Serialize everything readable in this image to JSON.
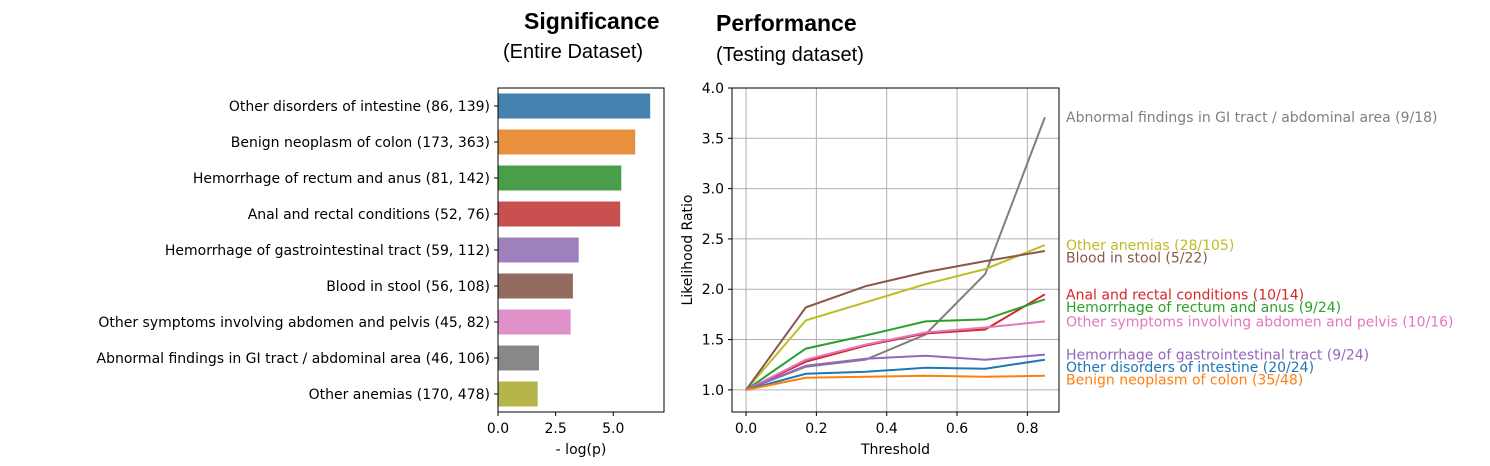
{
  "headings": {
    "left_title": "Significance",
    "left_subtitle": "(Entire Dataset)",
    "right_title": "Performance",
    "right_subtitle": "(Testing dataset)"
  },
  "chart_data": [
    {
      "type": "bar",
      "orientation": "horizontal",
      "title": "Significance (Entire Dataset)",
      "xlabel": "- log(p)",
      "ylabel": "",
      "xlim": [
        0,
        7.2
      ],
      "xticks": [
        "0.0",
        "2.5",
        "5.0"
      ],
      "categories": [
        "Other disorders of intestine (86, 139)",
        "Benign neoplasm of colon (173, 363)",
        "Hemorrhage of rectum and anus (81, 142)",
        "Anal and rectal conditions (52, 76)",
        "Hemorrhage of gastrointestinal tract (59, 112)",
        "Blood in stool (56, 108)",
        "Other symptoms involving abdomen and pelvis (45, 82)",
        "Abnormal findings in GI tract / abdominal area (46, 106)",
        "Other anemias (170, 478)"
      ],
      "values": [
        6.6,
        5.95,
        5.35,
        5.3,
        3.5,
        3.25,
        3.15,
        1.78,
        1.72
      ],
      "colors": [
        "#4682b0",
        "#e8903e",
        "#4a9e4a",
        "#c85050",
        "#9d80bc",
        "#936b60",
        "#de91c9",
        "#888888",
        "#b5b54b"
      ]
    },
    {
      "type": "line",
      "title": "Performance (Testing dataset)",
      "xlabel": "Threshold",
      "ylabel": "Likelihood Ratio",
      "xlim": [
        -0.04,
        0.89
      ],
      "ylim": [
        0.78,
        4.0
      ],
      "xticks": [
        "0.0",
        "0.2",
        "0.4",
        "0.6",
        "0.8"
      ],
      "yticks": [
        "1.0",
        "1.5",
        "2.0",
        "2.5",
        "3.0",
        "3.5",
        "4.0"
      ],
      "grid": true,
      "x": [
        0.0,
        0.17,
        0.34,
        0.51,
        0.68,
        0.85
      ],
      "series": [
        {
          "name": "Abnormal findings in GI tract / abdominal area (9/18)",
          "color": "#7f7f7f",
          "values": [
            1.0,
            1.23,
            1.3,
            1.55,
            2.15,
            3.71
          ]
        },
        {
          "name": "Other anemias (28/105)",
          "color": "#bcbd22",
          "values": [
            1.0,
            1.69,
            1.87,
            2.05,
            2.2,
            2.44
          ]
        },
        {
          "name": "Blood in stool (5/22)",
          "color": "#8c564b",
          "values": [
            1.0,
            1.82,
            2.03,
            2.17,
            2.28,
            2.38
          ]
        },
        {
          "name": "Anal and rectal conditions (10/14)",
          "color": "#d62728",
          "values": [
            1.0,
            1.28,
            1.44,
            1.56,
            1.6,
            1.95
          ]
        },
        {
          "name": "Hemorrhage of rectum and anus (9/24)",
          "color": "#2ca02c",
          "values": [
            1.0,
            1.41,
            1.54,
            1.68,
            1.7,
            1.9
          ]
        },
        {
          "name": "Other symptoms involving abdomen and pelvis (10/16)",
          "color": "#e377c2",
          "values": [
            1.0,
            1.3,
            1.45,
            1.57,
            1.62,
            1.68
          ]
        },
        {
          "name": "Hemorrhage of gastrointestinal tract (9/24)",
          "color": "#9467bd",
          "values": [
            1.0,
            1.24,
            1.31,
            1.34,
            1.3,
            1.35
          ]
        },
        {
          "name": "Other disorders of intestine (20/24)",
          "color": "#1f77b4",
          "values": [
            1.0,
            1.16,
            1.18,
            1.22,
            1.21,
            1.3
          ]
        },
        {
          "name": "Benign neoplasm of colon (35/48)",
          "color": "#ff7f0e",
          "values": [
            1.0,
            1.12,
            1.13,
            1.14,
            1.13,
            1.14
          ]
        }
      ]
    }
  ]
}
